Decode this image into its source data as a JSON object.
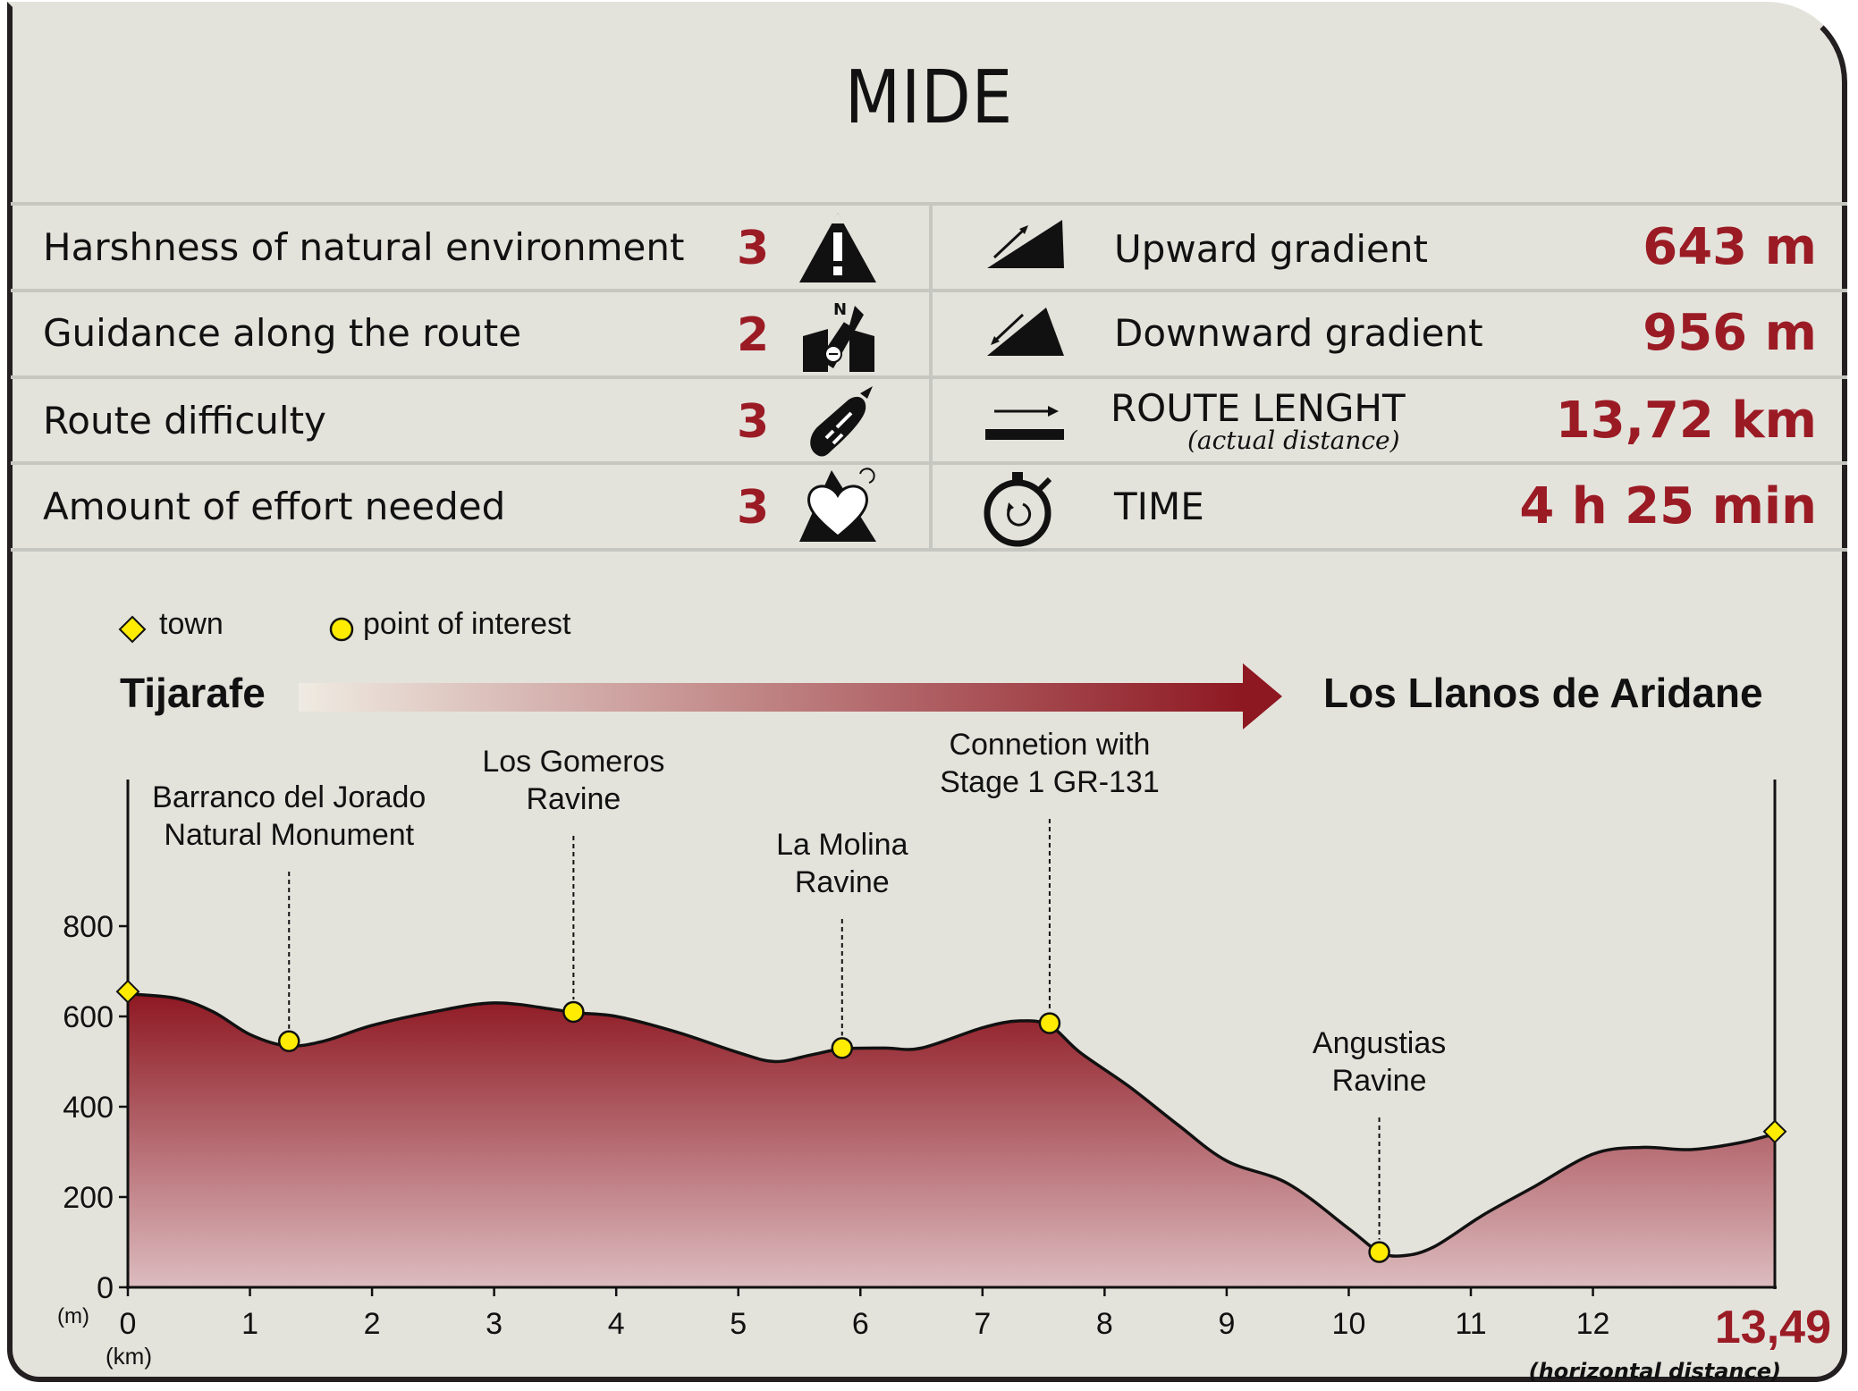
{
  "title": "MIDE",
  "mide": {
    "left": [
      {
        "label": "Harshness of natural environment",
        "score": "3",
        "icon": "mountain-warning-icon"
      },
      {
        "label": "Guidance along the route",
        "score": "2",
        "icon": "compass-map-icon"
      },
      {
        "label": "Route difficulty",
        "score": "3",
        "icon": "footprint-icon"
      },
      {
        "label": "Amount of effort needed",
        "score": "3",
        "icon": "heart-mountain-icon"
      }
    ],
    "right": [
      {
        "label": "Upward gradient",
        "value": "643 m",
        "icon": "upward-gradient-icon"
      },
      {
        "label": "Downward gradient",
        "value": "956 m",
        "icon": "downward-gradient-icon"
      },
      {
        "label": "ROUTE LENGHT",
        "sublabel": "(actual distance)",
        "value": "13,72 km",
        "icon": "route-length-icon"
      },
      {
        "label": "TIME",
        "value": "4 h 25 min",
        "icon": "stopwatch-icon"
      }
    ]
  },
  "legend": {
    "town": "town",
    "poi": "point of interest"
  },
  "route": {
    "start": "Tijarafe",
    "end": "Los Llanos de Aridane"
  },
  "colors": {
    "accent": "#9b1b24",
    "marker": "#ffec00",
    "background": "#e3e3dc"
  },
  "chart_data": {
    "type": "area",
    "xlabel": "(km)",
    "ylabel": "(m)",
    "xlim": [
      0,
      13.49
    ],
    "ylim": [
      0,
      1000
    ],
    "x_ticks": [
      0,
      1,
      2,
      3,
      4,
      5,
      6,
      7,
      8,
      9,
      10,
      11,
      12
    ],
    "y_ticks": [
      0,
      200,
      400,
      600,
      800
    ],
    "end_label": "13,49",
    "end_sublabel": "(horizontal distance)",
    "profile": {
      "x": [
        0,
        0.4,
        0.7,
        1.0,
        1.3,
        1.6,
        2.0,
        2.5,
        3.0,
        3.5,
        3.65,
        4.0,
        4.5,
        5.0,
        5.3,
        5.6,
        5.85,
        6.2,
        6.5,
        7.0,
        7.3,
        7.55,
        7.8,
        8.2,
        8.6,
        9.0,
        9.5,
        10.0,
        10.25,
        10.45,
        10.7,
        11.1,
        11.5,
        12.0,
        12.4,
        12.8,
        13.2,
        13.49
      ],
      "y": [
        650,
        640,
        610,
        560,
        535,
        545,
        580,
        610,
        630,
        615,
        608,
        600,
        565,
        520,
        500,
        515,
        528,
        530,
        530,
        575,
        590,
        580,
        520,
        445,
        360,
        280,
        230,
        130,
        78,
        70,
        90,
        160,
        220,
        295,
        310,
        305,
        320,
        340
      ]
    },
    "points": [
      {
        "type": "town",
        "x": 0,
        "y": 655
      },
      {
        "type": "poi",
        "x": 1.32,
        "y": 545,
        "label": [
          "Barranco del Jorado",
          "Natural Monument"
        ]
      },
      {
        "type": "poi",
        "x": 3.65,
        "y": 610,
        "label": [
          "Los Gomeros",
          "Ravine"
        ]
      },
      {
        "type": "poi",
        "x": 5.85,
        "y": 530,
        "label": [
          "La Molina",
          "Ravine"
        ]
      },
      {
        "type": "poi",
        "x": 7.55,
        "y": 585,
        "label": [
          "Connetion with",
          "Stage 1 GR-131"
        ]
      },
      {
        "type": "poi",
        "x": 10.25,
        "y": 78,
        "label": [
          "Angustias",
          "Ravine"
        ]
      },
      {
        "type": "town",
        "x": 13.49,
        "y": 345
      }
    ]
  }
}
